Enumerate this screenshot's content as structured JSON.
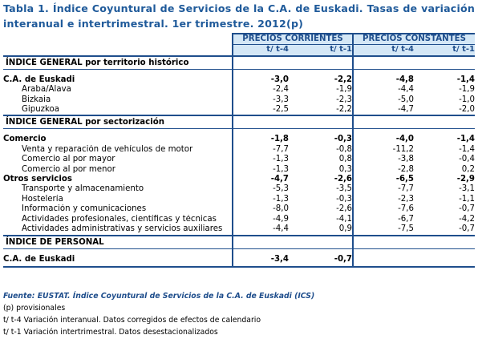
{
  "title": "Tabla 1. Índice Coyuntural de Servicios de la C.A. de Euskadi. Tasas de variación interanual e intertrimestral. 1er trimestre. 2012(p)",
  "headers": {
    "group1": "PRECIOS CORRIENTES",
    "group2": "PRECIOS CONSTANTES",
    "sub": [
      "t/ t-4",
      "t/ t-1",
      "t/ t-4",
      "t/ t-1"
    ]
  },
  "sections": [
    {
      "title": "ÍNDICE GENERAL por territorio histórico",
      "rows": [
        {
          "label": "C.A. de Euskadi",
          "bold": true,
          "indent": false,
          "values": [
            "-3,0",
            "-2,2",
            "-4,8",
            "-1,4"
          ]
        },
        {
          "label": "Araba/Álava",
          "bold": false,
          "indent": true,
          "values": [
            "-2,4",
            "-1,9",
            "-4,4",
            "-1,9"
          ]
        },
        {
          "label": "Bizkaia",
          "bold": false,
          "indent": true,
          "values": [
            "-3,3",
            "-2,3",
            "-5,0",
            "-1,0"
          ]
        },
        {
          "label": "Gipuzkoa",
          "bold": false,
          "indent": true,
          "values": [
            "-2,5",
            "-2,2",
            "-4,7",
            "-2,0"
          ]
        }
      ]
    },
    {
      "title": "ÍNDICE GENERAL por sectorización",
      "rows": [
        {
          "label": "Comercio",
          "bold": true,
          "indent": false,
          "values": [
            "-1,8",
            "-0,3",
            "-4,0",
            "-1,4"
          ]
        },
        {
          "label": "Venta y reparación de vehículos de motor",
          "bold": false,
          "indent": true,
          "values": [
            "-7,7",
            "-0,8",
            "-11,2",
            "-1,4"
          ]
        },
        {
          "label": "Comercio al por mayor",
          "bold": false,
          "indent": true,
          "values": [
            "-1,3",
            "0,8",
            "-3,8",
            "-0,4"
          ]
        },
        {
          "label": "Comercio al por menor",
          "bold": false,
          "indent": true,
          "values": [
            "-1,3",
            "0,3",
            "-2,8",
            "0,2"
          ]
        },
        {
          "label": "Otros servicios",
          "bold": true,
          "indent": false,
          "values": [
            "-4,7",
            "-2,6",
            "-6,5",
            "-2,9"
          ]
        },
        {
          "label": "Transporte y almacenamiento",
          "bold": false,
          "indent": true,
          "values": [
            "-5,3",
            "-3,5",
            "-7,7",
            "-3,1"
          ]
        },
        {
          "label": "Hostelería",
          "bold": false,
          "indent": true,
          "values": [
            "-1,3",
            "-0,3",
            "-2,3",
            "-1,1"
          ]
        },
        {
          "label": "Información y comunicaciones",
          "bold": false,
          "indent": true,
          "values": [
            "-8,0",
            "-2,6",
            "-7,6",
            "-0,7"
          ]
        },
        {
          "label": "Actividades profesionales, científicas y técnicas",
          "bold": false,
          "indent": true,
          "values": [
            "-4,9",
            "-4,1",
            "-6,7",
            "-4,2"
          ]
        },
        {
          "label": "Actividades administrativas y servicios auxiliares",
          "bold": false,
          "indent": true,
          "values": [
            "-4,4",
            "0,9",
            "-7,5",
            "-0,7"
          ]
        }
      ]
    },
    {
      "title": "ÍNDICE DE PERSONAL",
      "rows": [
        {
          "label": "C.A. de Euskadi",
          "bold": true,
          "indent": false,
          "values": [
            "-3,4",
            "-0,7",
            "",
            ""
          ]
        }
      ]
    }
  ],
  "notes": {
    "source": "Fuente: EUSTAT. Índice Coyuntural de Servicios de la C.A. de Euskadi (ICS)",
    "lines": [
      "(p) provisionales",
      "t/ t-4 Variación interanual. Datos corregidos de efectos de calendario",
      "t/ t-1 Variación intertrimestral. Datos desestacionalizados"
    ]
  },
  "colors": {
    "accent": "#1f4e8c",
    "header_bg": "#d4e7f6",
    "title": "#1f5a9a"
  }
}
